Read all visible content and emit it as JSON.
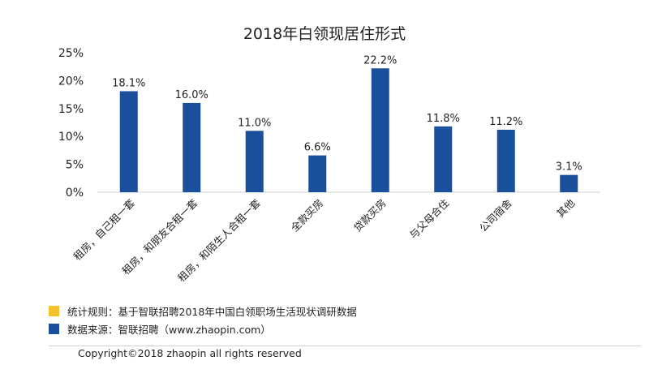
{
  "chart_data": {
    "type": "bar",
    "title": "2018年白领现居住形式",
    "categories": [
      "租房，自己租一套",
      "租房，和朋友合租一套",
      "租房，和陌生人合租一套",
      "全款买房",
      "贷款买房",
      "与父母合住",
      "公司宿舍",
      "其他"
    ],
    "values": [
      18.1,
      16.0,
      11.0,
      6.6,
      22.2,
      11.8,
      11.2,
      3.1
    ],
    "value_labels": [
      "18.1%",
      "16.0%",
      "11.0%",
      "6.6%",
      "22.2%",
      "11.8%",
      "11.2%",
      "3.1%"
    ],
    "y_ticks": [
      "0%",
      "5%",
      "10%",
      "15%",
      "20%",
      "25%"
    ],
    "ylim": [
      0,
      25
    ],
    "xlabel": "",
    "ylabel": "",
    "grid": false,
    "bar_color": "#1a4f9c"
  },
  "notes": [
    {
      "text": "统计规则：基于智联招聘2018年中国白领职场生活现状调研数据",
      "color": "#f2c12e"
    },
    {
      "text": "数据来源：智联招聘（www.zhaopin.com）",
      "color": "#1a4f9c"
    }
  ],
  "copyright": "Copyright©2018 zhaopin all rights reserved"
}
